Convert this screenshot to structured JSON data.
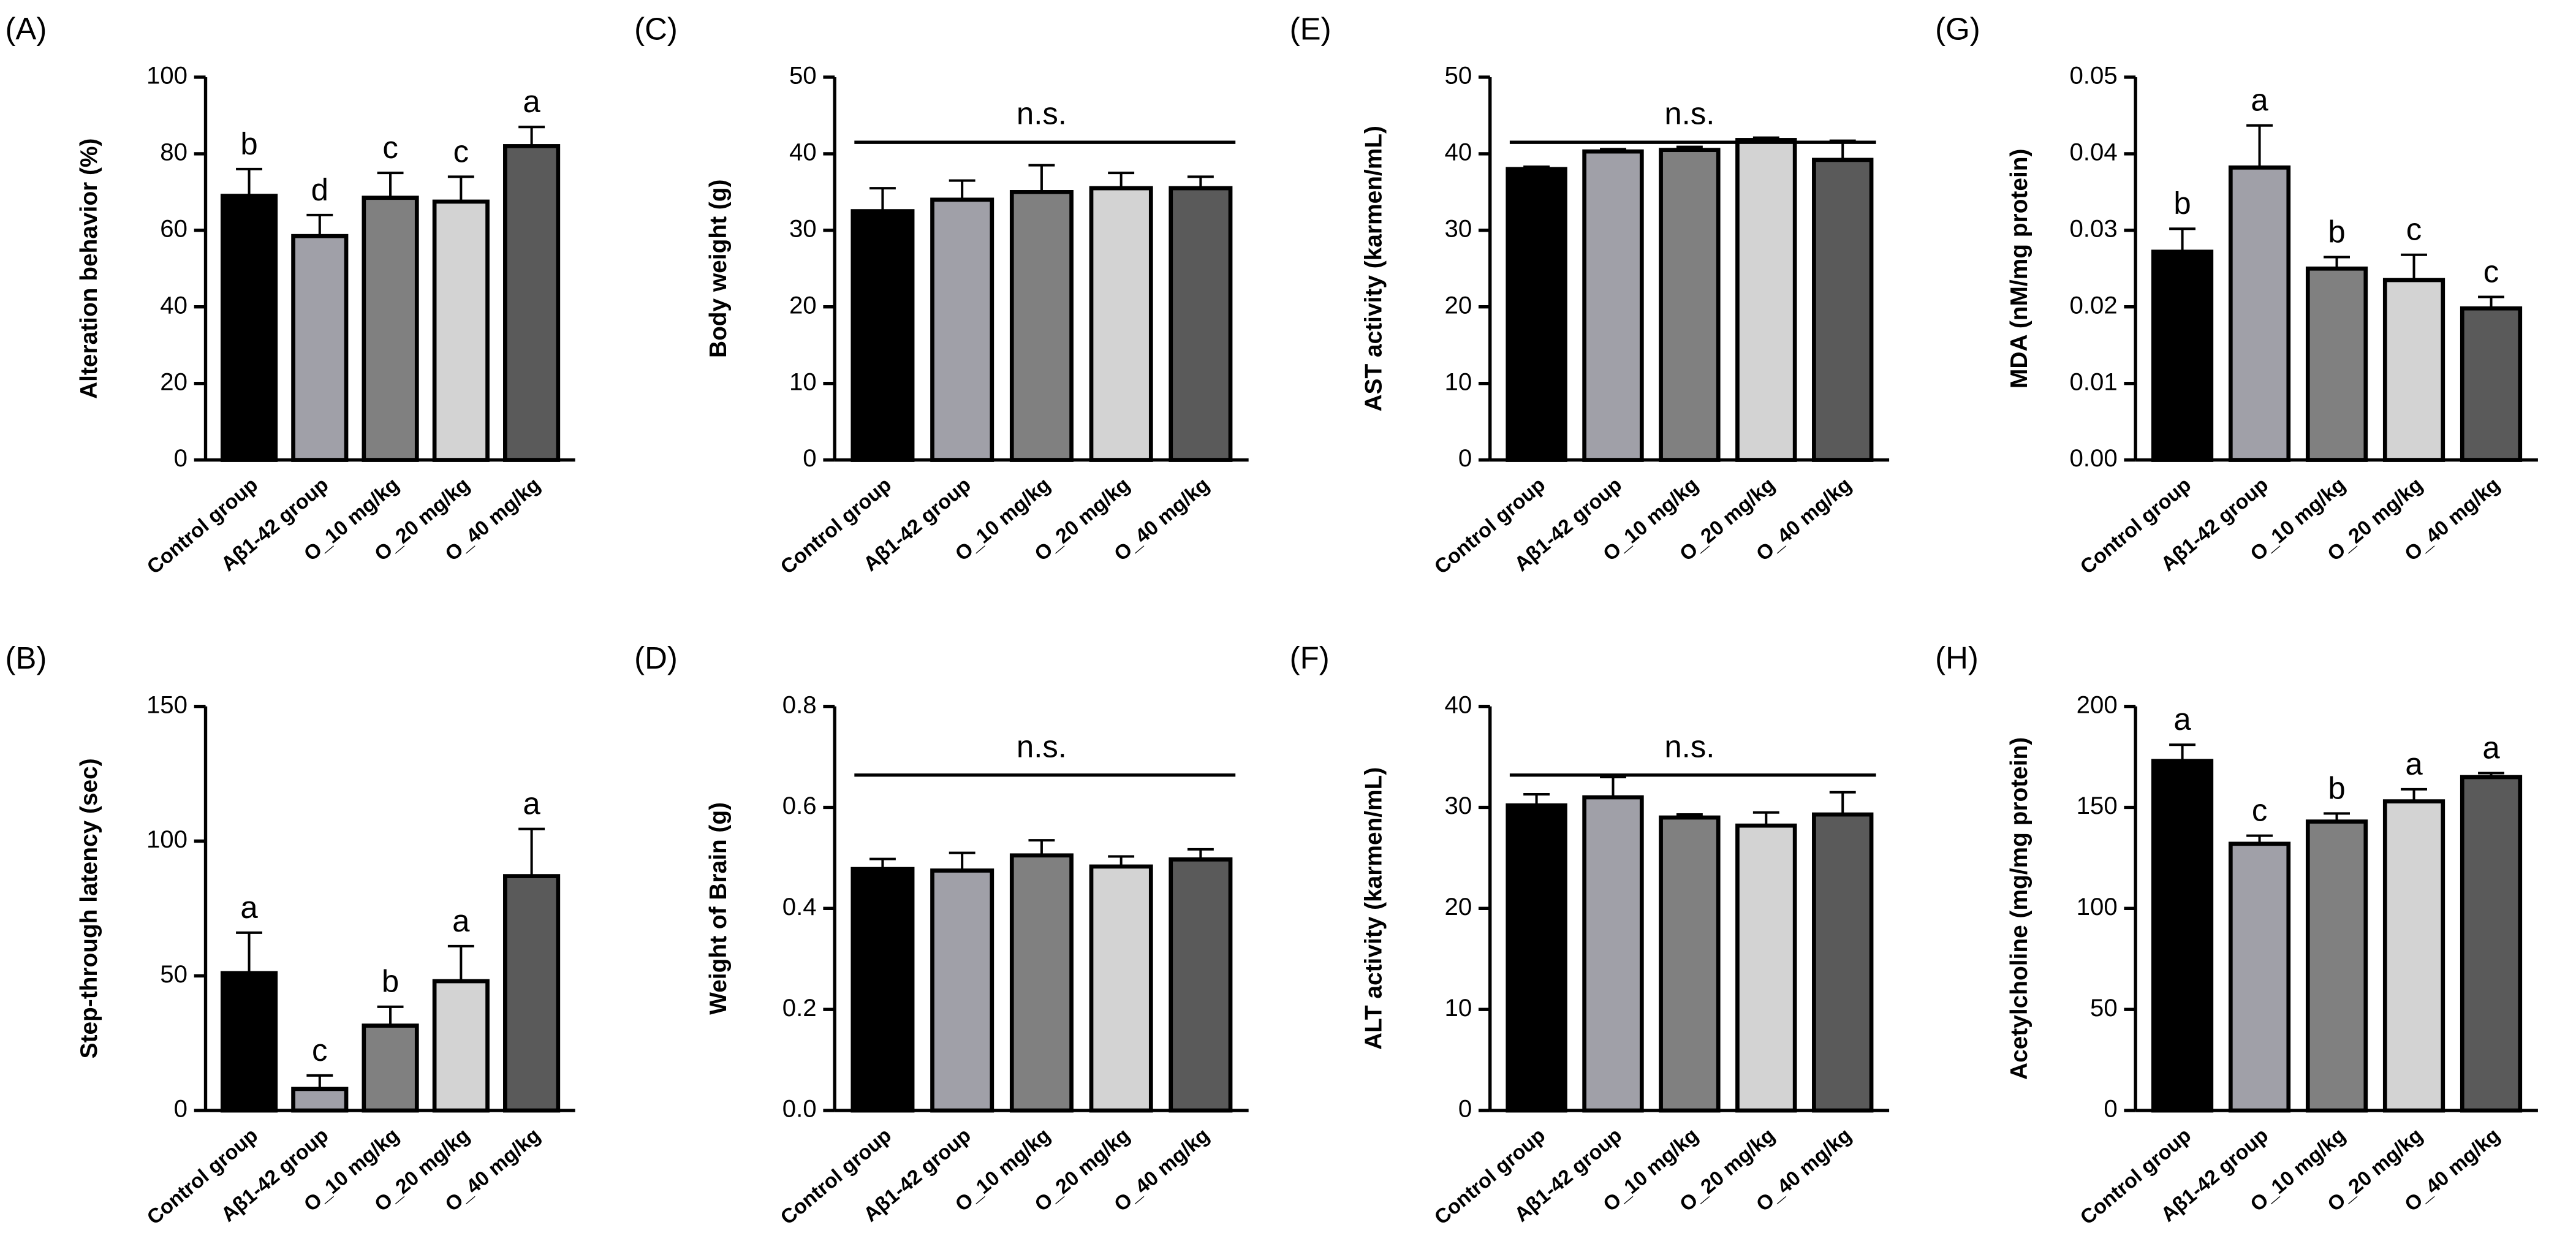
{
  "chart_data": [
    {
      "type": "bar",
      "panel": "(A)",
      "ylabel": "Alteration behavior (%)",
      "categories": [
        "Control group",
        "Aβ1-42 group",
        "O_10 mg/kg",
        "O_20 mg/kg",
        "O_40 mg/kg"
      ],
      "values": [
        69,
        58.5,
        68.5,
        67.5,
        82
      ],
      "errors": [
        7,
        5.5,
        6.5,
        6.5,
        5
      ],
      "letters": [
        "b",
        "d",
        "c",
        "c",
        "a"
      ],
      "colors": [
        "#000000",
        "#a0a0a8",
        "#808080",
        "#d3d3d3",
        "#5a5a5a"
      ],
      "ylim": [
        0,
        100
      ],
      "yticks": [
        0,
        20,
        40,
        60,
        80,
        100
      ]
    },
    {
      "type": "bar",
      "panel": "(B)",
      "ylabel": "Step-through latency (sec)",
      "categories": [
        "Control group",
        "Aβ1-42 group",
        "O_10 mg/kg",
        "O_20 mg/kg",
        "O_40 mg/kg"
      ],
      "values": [
        51,
        8,
        31.5,
        48,
        87
      ],
      "errors": [
        15,
        5,
        7,
        13,
        17.5
      ],
      "letters": [
        "a",
        "c",
        "b",
        "a",
        "a"
      ],
      "colors": [
        "#000000",
        "#a0a0a8",
        "#808080",
        "#d3d3d3",
        "#5a5a5a"
      ],
      "ylim": [
        0,
        150
      ],
      "yticks": [
        0,
        50,
        100,
        150
      ]
    },
    {
      "type": "bar",
      "panel": "(C)",
      "ylabel": "Body weight (g)",
      "categories": [
        "Control group",
        "Aβ1-42 group",
        "O_10 mg/kg",
        "O_20 mg/kg",
        "O_40 mg/kg"
      ],
      "values": [
        32.5,
        34,
        35,
        35.5,
        35.5
      ],
      "errors": [
        3,
        2.5,
        3.5,
        2,
        1.5
      ],
      "annotation": "n.s.",
      "colors": [
        "#000000",
        "#a0a0a8",
        "#808080",
        "#d3d3d3",
        "#5a5a5a"
      ],
      "ylim": [
        0,
        50
      ],
      "yticks": [
        0,
        10,
        20,
        30,
        40,
        50
      ]
    },
    {
      "type": "bar",
      "panel": "(D)",
      "ylabel": "Weight of Brain (g)",
      "categories": [
        "Control group",
        "Aβ1-42 group",
        "O_10 mg/kg",
        "O_20 mg/kg",
        "O_40 mg/kg"
      ],
      "values": [
        0.478,
        0.475,
        0.505,
        0.483,
        0.497
      ],
      "errors": [
        0.02,
        0.035,
        0.03,
        0.02,
        0.02
      ],
      "annotation": "n.s.",
      "colors": [
        "#000000",
        "#a0a0a8",
        "#808080",
        "#d3d3d3",
        "#5a5a5a"
      ],
      "ylim": [
        0,
        0.8
      ],
      "yticks": [
        {
          "value": 0,
          "label": "0.0"
        },
        0.2,
        0.4,
        0.6,
        0.8
      ]
    },
    {
      "type": "bar",
      "panel": "(E)",
      "ylabel": "AST activity (karmen/mL)",
      "categories": [
        "Control group",
        "Aβ1-42 group",
        "O_10 mg/kg",
        "O_20 mg/kg",
        "O_40 mg/kg"
      ],
      "values": [
        38,
        40.3,
        40.5,
        41.8,
        39.2
      ],
      "errors": [
        0.3,
        0.3,
        0.4,
        0.3,
        2.5
      ],
      "annotation": "n.s.",
      "colors": [
        "#000000",
        "#a0a0a8",
        "#808080",
        "#d3d3d3",
        "#5a5a5a"
      ],
      "ylim": [
        0,
        50
      ],
      "yticks": [
        0,
        10,
        20,
        30,
        40,
        50
      ]
    },
    {
      "type": "bar",
      "panel": "(F)",
      "ylabel": "ALT activity (karmen/mL)",
      "categories": [
        "Control group",
        "Aβ1-42 group",
        "O_10 mg/kg",
        "O_20 mg/kg",
        "O_40 mg/kg"
      ],
      "values": [
        30.2,
        31,
        29,
        28.2,
        29.3
      ],
      "errors": [
        1.1,
        2,
        0.3,
        1.3,
        2.2
      ],
      "annotation": "n.s.",
      "colors": [
        "#000000",
        "#a0a0a8",
        "#808080",
        "#d3d3d3",
        "#5a5a5a"
      ],
      "ylim": [
        0,
        40
      ],
      "yticks": [
        0,
        10,
        20,
        30,
        40
      ]
    },
    {
      "type": "bar",
      "panel": "(G)",
      "ylabel": "MDA (nM/mg protein)",
      "categories": [
        "Control group",
        "Aβ1-42 group",
        "O_10 mg/kg",
        "O_20 mg/kg",
        "O_40 mg/kg"
      ],
      "values": [
        0.0272,
        0.0382,
        0.025,
        0.0235,
        0.0198
      ],
      "errors": [
        0.003,
        0.0055,
        0.0015,
        0.0033,
        0.0015
      ],
      "letters": [
        "b",
        "a",
        "b",
        "c",
        "c"
      ],
      "colors": [
        "#000000",
        "#a0a0a8",
        "#808080",
        "#d3d3d3",
        "#5a5a5a"
      ],
      "ylim": [
        0,
        0.05
      ],
      "yticks": [
        {
          "value": 0,
          "label": "0.00"
        },
        0.01,
        0.02,
        0.03,
        0.04,
        0.05
      ]
    },
    {
      "type": "bar",
      "panel": "(H)",
      "ylabel": "Acetylcholine (mg/mg protein)",
      "categories": [
        "Control group",
        "Aβ1-42 group",
        "O_10 mg/kg",
        "O_20 mg/kg",
        "O_40 mg/kg"
      ],
      "values": [
        173,
        132,
        143,
        153,
        165
      ],
      "errors": [
        8,
        4,
        4,
        6,
        2
      ],
      "letters": [
        "a",
        "c",
        "b",
        "a",
        "a"
      ],
      "colors": [
        "#000000",
        "#a0a0a8",
        "#808080",
        "#d3d3d3",
        "#5a5a5a"
      ],
      "ylim": [
        0,
        200
      ],
      "yticks": [
        0,
        50,
        100,
        150,
        200
      ]
    }
  ]
}
